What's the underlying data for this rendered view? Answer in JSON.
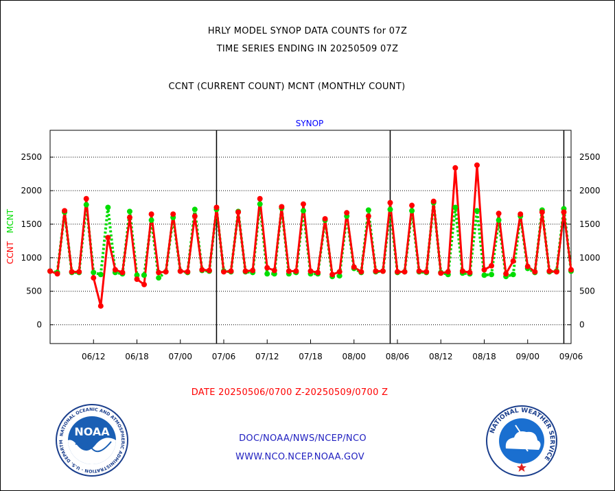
{
  "header": {
    "title_line1": "HRLY MODEL SYNOP DATA COUNTS for 07Z",
    "title_line2": "TIME SERIES ENDING IN 20250509 07Z",
    "title_line3": "CCNT (CURRENT COUNT) MCNT (MONTHLY COUNT)"
  },
  "footer": {
    "date_range": "DATE 20250506/0700 Z-20250509/0700 Z",
    "org": "DOC/NOAA/NWS/NCEP/NCO",
    "url": "WWW.NCO.NCEP.NOAA.GOV",
    "noaa_logo_text": "NOAA",
    "noaa_ring_text": "NATIONAL OCEANIC AND ATMOSPHERIC ADMINISTRATION · U.S. DEPARTMENT OF COMMERCE",
    "nws_ring_text": "NATIONAL WEATHER SERVICE"
  },
  "colors": {
    "ccnt": "#ff0000",
    "mcnt": "#00dd00",
    "subtitle": "#0000ff",
    "link_text": "#2020c0"
  },
  "chart_data": {
    "type": "line",
    "subtitle": "SYNOP",
    "ylabel_parts": [
      "CCNT",
      "MCNT"
    ],
    "ylim": [
      -280,
      2900
    ],
    "yticks": [
      0,
      500,
      1000,
      1500,
      2000,
      2500
    ],
    "grid": true,
    "x_tick_labels": [
      "06/12",
      "06/18",
      "07/00",
      "07/06",
      "07/12",
      "07/18",
      "08/00",
      "08/06",
      "08/12",
      "08/18",
      "09/00",
      "09/06"
    ],
    "x_tick_index": [
      6,
      12,
      18,
      24,
      30,
      36,
      42,
      48,
      54,
      60,
      66,
      72
    ],
    "day_boundary_index": [
      23,
      47,
      71
    ],
    "series": [
      {
        "name": "CCNT",
        "values": [
          800,
          760,
          1700,
          790,
          790,
          1880,
          700,
          280,
          1300,
          820,
          780,
          1600,
          680,
          600,
          1650,
          780,
          790,
          1650,
          800,
          790,
          1620,
          820,
          810,
          1750,
          790,
          800,
          1680,
          800,
          810,
          1880,
          850,
          810,
          1760,
          800,
          800,
          1800,
          800,
          780,
          1580,
          750,
          790,
          1670,
          860,
          790,
          1620,
          800,
          800,
          1820,
          790,
          790,
          1780,
          800,
          790,
          1840,
          770,
          790,
          2340,
          800,
          780,
          2380,
          820,
          880,
          1660,
          760,
          950,
          1650,
          870,
          790,
          1680,
          800,
          790,
          1680,
          820
        ]
      },
      {
        "name": "MCNT",
        "values": [
          800,
          780,
          1680,
          780,
          780,
          1790,
          780,
          750,
          1750,
          780,
          760,
          1690,
          740,
          740,
          1560,
          700,
          790,
          1600,
          800,
          780,
          1720,
          810,
          800,
          1720,
          800,
          790,
          1690,
          790,
          780,
          1800,
          760,
          760,
          1740,
          760,
          780,
          1700,
          760,
          760,
          1560,
          720,
          730,
          1620,
          840,
          780,
          1710,
          790,
          800,
          1720,
          780,
          790,
          1700,
          790,
          780,
          1820,
          780,
          750,
          1750,
          770,
          760,
          1700,
          740,
          750,
          1560,
          720,
          750,
          1620,
          840,
          780,
          1710,
          790,
          800,
          1730,
          800
        ]
      }
    ]
  }
}
